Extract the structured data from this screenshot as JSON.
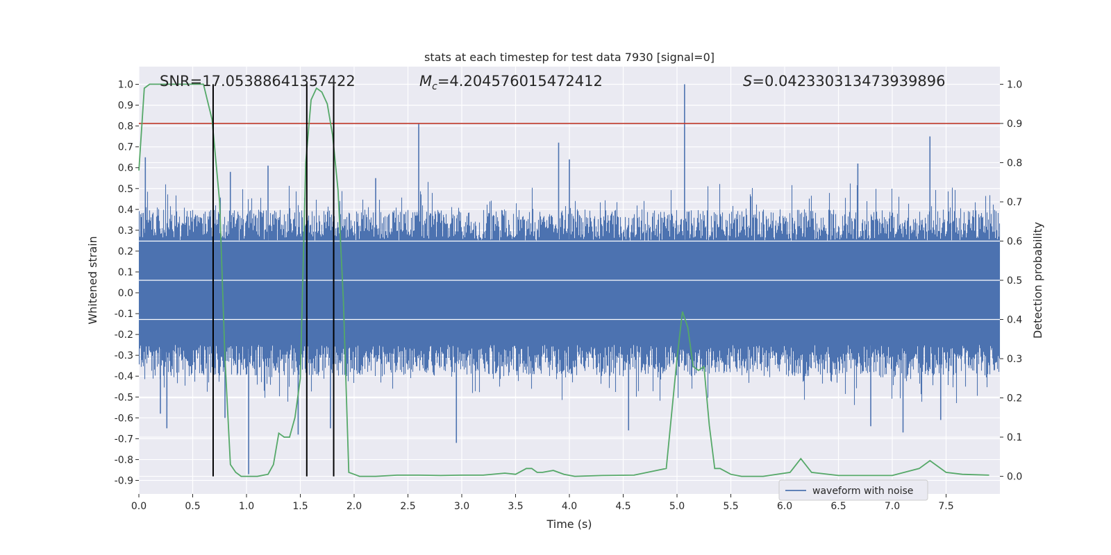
{
  "chart_data": {
    "type": "line",
    "title": "stats at each timestep for test data 7930 [signal=0]",
    "xlabel": "Time (s)",
    "ylabel_left": "Whitened strain",
    "ylabel_right": "Detection probability",
    "xlim": [
      0,
      8
    ],
    "ylim_left": [
      -0.965,
      1.085
    ],
    "ylim_right": [
      -0.045,
      1.045
    ],
    "x_ticks": [
      "0.0",
      "0.5",
      "1.0",
      "1.5",
      "2.0",
      "2.5",
      "3.0",
      "3.5",
      "4.0",
      "4.5",
      "5.0",
      "5.5",
      "6.0",
      "6.5",
      "7.0",
      "7.5"
    ],
    "x_tick_values": [
      0,
      0.5,
      1.0,
      1.5,
      2.0,
      2.5,
      3.0,
      3.5,
      4.0,
      4.5,
      5.0,
      5.5,
      6.0,
      6.5,
      7.0,
      7.5
    ],
    "y_left_ticks": [
      "1.0",
      "0.9",
      "0.8",
      "0.7",
      "0.6",
      "0.5",
      "0.4",
      "0.3",
      "0.2",
      "0.1",
      "0.0",
      "-0.1",
      "-0.2",
      "-0.3",
      "-0.4",
      "-0.5",
      "-0.6",
      "-0.7",
      "-0.8",
      "-0.9"
    ],
    "y_left_tick_values": [
      1.0,
      0.9,
      0.8,
      0.7,
      0.6,
      0.5,
      0.4,
      0.3,
      0.2,
      0.1,
      0.0,
      -0.1,
      -0.2,
      -0.3,
      -0.4,
      -0.5,
      -0.6,
      -0.7,
      -0.8,
      -0.9
    ],
    "y_right_ticks": [
      "1.0",
      "0.9",
      "0.8",
      "0.7",
      "0.6",
      "0.5",
      "0.4",
      "0.3",
      "0.2",
      "0.1",
      "0.0"
    ],
    "y_right_tick_values": [
      1.0,
      0.9,
      0.8,
      0.7,
      0.6,
      0.5,
      0.4,
      0.3,
      0.2,
      0.1,
      0.0
    ],
    "annotations": {
      "snr": "SNR=17.05388641357422",
      "mc_symbol": "M",
      "mc_subscript": "c",
      "mc_value": "=4.204576015472412",
      "s_symbol": "S",
      "s_value": "=0.042330313473939896"
    },
    "legend": {
      "entries": [
        "waveform with noise"
      ],
      "position": "lower-right"
    },
    "threshold_line": {
      "axis": "right",
      "value": 0.9,
      "color": "#c0392b"
    },
    "vertical_lines": [
      0.69,
      1.56,
      1.81
    ],
    "vertical_lines_range_right": [
      0.0,
      1.0
    ],
    "waveform": {
      "name": "waveform with noise",
      "color": "#4c72b0",
      "band_core": 0.25,
      "band_typical": 0.4,
      "spikes": [
        {
          "t": 0.06,
          "v": 0.65
        },
        {
          "t": 0.2,
          "v": -0.58
        },
        {
          "t": 0.26,
          "v": -0.65
        },
        {
          "t": 0.8,
          "v": -0.6
        },
        {
          "t": 0.85,
          "v": 0.58
        },
        {
          "t": 1.02,
          "v": -0.87
        },
        {
          "t": 1.2,
          "v": 0.61
        },
        {
          "t": 1.48,
          "v": -0.68
        },
        {
          "t": 1.78,
          "v": -0.65
        },
        {
          "t": 2.2,
          "v": 0.55
        },
        {
          "t": 2.6,
          "v": 0.81
        },
        {
          "t": 2.95,
          "v": -0.72
        },
        {
          "t": 3.9,
          "v": 0.72
        },
        {
          "t": 4.0,
          "v": 0.64
        },
        {
          "t": 4.55,
          "v": -0.66
        },
        {
          "t": 5.07,
          "v": 1.0
        },
        {
          "t": 6.8,
          "v": -0.64
        },
        {
          "t": 6.68,
          "v": 0.62
        },
        {
          "t": 7.1,
          "v": -0.67
        },
        {
          "t": 7.35,
          "v": 0.75
        },
        {
          "t": 7.45,
          "v": -0.61
        }
      ]
    },
    "detection_probability": {
      "color": "#55a868",
      "x": [
        0.0,
        0.05,
        0.1,
        0.2,
        0.3,
        0.4,
        0.5,
        0.6,
        0.68,
        0.75,
        0.8,
        0.85,
        0.9,
        0.95,
        1.0,
        1.05,
        1.1,
        1.2,
        1.25,
        1.3,
        1.35,
        1.4,
        1.45,
        1.5,
        1.55,
        1.6,
        1.65,
        1.7,
        1.75,
        1.8,
        1.85,
        1.9,
        1.95,
        2.0,
        2.05,
        2.1,
        2.2,
        2.4,
        2.6,
        2.8,
        3.0,
        3.2,
        3.4,
        3.5,
        3.6,
        3.65,
        3.7,
        3.75,
        3.85,
        3.95,
        4.05,
        4.3,
        4.6,
        4.9,
        5.0,
        5.05,
        5.1,
        5.15,
        5.2,
        5.25,
        5.3,
        5.35,
        5.4,
        5.5,
        5.6,
        5.8,
        6.05,
        6.15,
        6.25,
        6.5,
        7.0,
        7.25,
        7.35,
        7.4,
        7.5,
        7.65,
        7.9
      ],
      "y": [
        0.78,
        0.99,
        1.0,
        1.0,
        1.0,
        1.0,
        1.0,
        1.0,
        0.91,
        0.7,
        0.3,
        0.03,
        0.01,
        0.0,
        0.0,
        0.0,
        0.0,
        0.005,
        0.03,
        0.11,
        0.1,
        0.1,
        0.15,
        0.25,
        0.8,
        0.96,
        0.99,
        0.98,
        0.95,
        0.87,
        0.73,
        0.45,
        0.01,
        0.005,
        0.0,
        0.0,
        0.0,
        0.003,
        0.003,
        0.002,
        0.003,
        0.003,
        0.008,
        0.005,
        0.02,
        0.02,
        0.01,
        0.01,
        0.015,
        0.005,
        0.0,
        0.002,
        0.003,
        0.02,
        0.3,
        0.42,
        0.38,
        0.28,
        0.27,
        0.28,
        0.13,
        0.02,
        0.02,
        0.005,
        0.0,
        0.0,
        0.01,
        0.045,
        0.01,
        0.002,
        0.002,
        0.02,
        0.04,
        0.03,
        0.01,
        0.005,
        0.003
      ]
    }
  }
}
